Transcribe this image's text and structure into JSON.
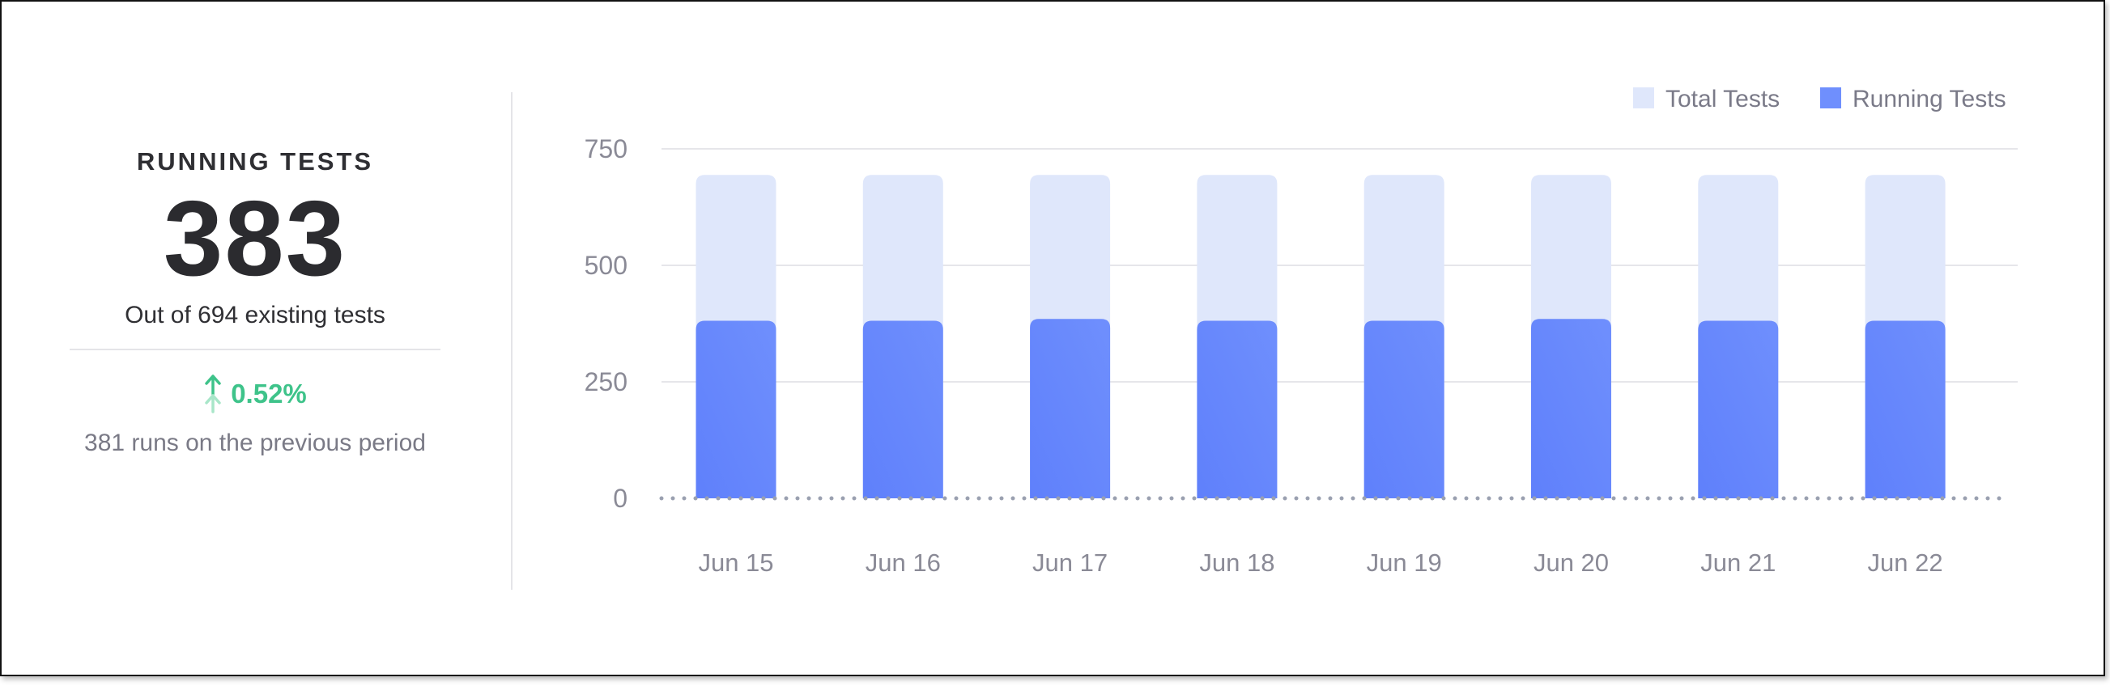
{
  "stat": {
    "title": "RUNNING TESTS",
    "value": "383",
    "subtitle": "Out of 694 existing tests",
    "change": "0.52%",
    "change_direction": "up",
    "previous": "381 runs on the previous period"
  },
  "colors": {
    "total": "#dfe7fb",
    "running": "#6f8ffd",
    "running_dark": "#5f80fb",
    "positive": "#3ec38a",
    "axis_dots": "#9aa0b0",
    "grid": "#e6e6ea"
  },
  "chart_data": {
    "type": "bar",
    "categories": [
      "Jun 15",
      "Jun 16",
      "Jun 17",
      "Jun 18",
      "Jun 19",
      "Jun 20",
      "Jun 21",
      "Jun 22"
    ],
    "series": [
      {
        "name": "Total Tests",
        "values": [
          694,
          694,
          694,
          694,
          694,
          694,
          694,
          694
        ]
      },
      {
        "name": "Running Tests",
        "values": [
          381,
          381,
          385,
          381,
          381,
          385,
          381,
          381
        ]
      }
    ],
    "ylim": [
      0,
      750
    ],
    "yticks": [
      0,
      250,
      500,
      750
    ],
    "grid": true,
    "legend_position": "top-right",
    "title": "",
    "xlabel": "",
    "ylabel": ""
  }
}
